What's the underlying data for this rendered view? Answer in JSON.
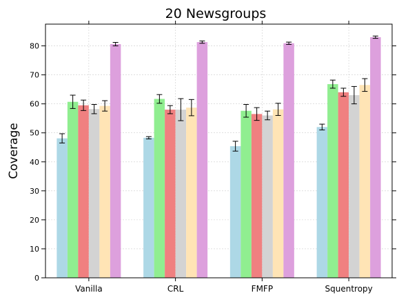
{
  "chart_data": {
    "type": "bar",
    "title": "20 Newsgroups",
    "xlabel": "",
    "ylabel": "Coverage",
    "categories": [
      "Vanilla",
      "CRL",
      "FMFP",
      "Squentropy"
    ],
    "ylim": [
      0,
      87.5
    ],
    "yticks": [
      0,
      10,
      20,
      30,
      40,
      50,
      60,
      70,
      80
    ],
    "grid": true,
    "legend": "none",
    "series": [
      {
        "color": "#add8e6",
        "values": [
          48.1,
          48.3,
          45.4,
          52.0
        ],
        "errors": [
          1.6,
          0.4,
          1.7,
          1.0
        ]
      },
      {
        "color": "#90ee90",
        "values": [
          60.7,
          61.7,
          57.6,
          66.8
        ],
        "errors": [
          2.3,
          1.5,
          2.2,
          1.4
        ]
      },
      {
        "color": "#f08080",
        "values": [
          59.5,
          58.0,
          56.5,
          64.0
        ],
        "errors": [
          1.8,
          1.4,
          2.2,
          1.4
        ]
      },
      {
        "color": "#d3d3d3",
        "values": [
          58.2,
          58.0,
          56.0,
          63.0
        ],
        "errors": [
          1.6,
          3.8,
          1.5,
          3.0
        ]
      },
      {
        "color": "#ffe4b5",
        "values": [
          59.3,
          58.7,
          58.1,
          66.5
        ],
        "errors": [
          1.8,
          2.8,
          2.1,
          2.2
        ]
      },
      {
        "color": "#dda0dd",
        "values": [
          80.6,
          81.3,
          80.9,
          83.0
        ],
        "errors": [
          0.6,
          0.4,
          0.4,
          0.4
        ]
      }
    ]
  }
}
